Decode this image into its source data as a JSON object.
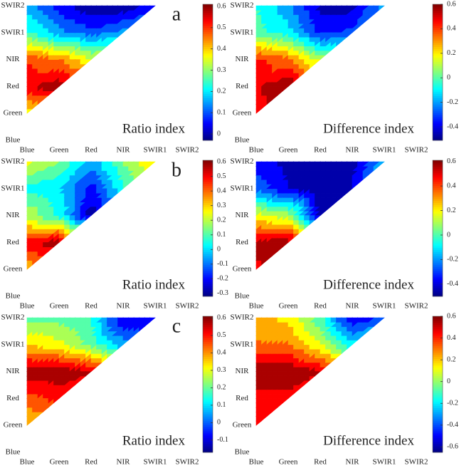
{
  "chart_data": [
    {
      "type": "contour",
      "panel_label": "a",
      "annotation": "Ratio index",
      "x_categories": [
        "Blue",
        "Green",
        "Red",
        "NIR",
        "SWIR1",
        "SWIR2"
      ],
      "y_categories": [
        "Blue",
        "Green",
        "Red",
        "NIR",
        "SWIR1",
        "SWIR2"
      ],
      "values": [
        [
          null,
          null,
          null,
          null,
          null,
          null
        ],
        [
          0.35,
          null,
          null,
          null,
          null,
          null
        ],
        [
          0.55,
          0.6,
          null,
          null,
          null,
          null
        ],
        [
          0.5,
          0.45,
          0.35,
          null,
          null,
          null
        ],
        [
          0.25,
          0.15,
          0.1,
          0.15,
          null,
          null
        ],
        [
          0.15,
          0.05,
          -0.02,
          -0.02,
          0.05,
          null
        ]
      ],
      "colormap": "jet",
      "clim": [
        -0.03,
        0.61
      ],
      "cticks": [
        0,
        0.1,
        0.2,
        0.3,
        0.4,
        0.5,
        0.6
      ]
    },
    {
      "type": "contour",
      "annotation": "Difference index",
      "x_categories": [
        "Blue",
        "Green",
        "Red",
        "NIR",
        "SWIR1",
        "SWIR2"
      ],
      "y_categories": [
        "Blue",
        "Green",
        "Red",
        "NIR",
        "SWIR1",
        "SWIR2"
      ],
      "values": [
        [
          null,
          null,
          null,
          null,
          null,
          null
        ],
        [
          0.45,
          null,
          null,
          null,
          null,
          null
        ],
        [
          0.5,
          0.6,
          null,
          null,
          null,
          null
        ],
        [
          0.45,
          0.35,
          0.1,
          null,
          null,
          null
        ],
        [
          0,
          -0.1,
          -0.35,
          -0.3,
          null,
          null
        ],
        [
          -0.05,
          -0.2,
          -0.45,
          -0.45,
          -0.2,
          null
        ]
      ],
      "colormap": "jet",
      "clim": [
        -0.51,
        0.6
      ],
      "cticks": [
        -0.4,
        -0.2,
        0,
        0.2,
        0.4,
        0.6
      ]
    },
    {
      "type": "contour",
      "panel_label": "b",
      "annotation": "Ratio index",
      "x_categories": [
        "Blue",
        "Green",
        "Red",
        "NIR",
        "SWIR1",
        "SWIR2"
      ],
      "y_categories": [
        "Blue",
        "Green",
        "Red",
        "NIR",
        "SWIR1",
        "SWIR2"
      ],
      "values": [
        [
          null,
          null,
          null,
          null,
          null,
          null
        ],
        [
          0.3,
          null,
          null,
          null,
          null,
          null
        ],
        [
          0.5,
          0.6,
          null,
          null,
          null,
          null
        ],
        [
          0.2,
          0.05,
          -0.3,
          null,
          null,
          null
        ],
        [
          0.05,
          0,
          -0.2,
          0.05,
          null,
          null
        ],
        [
          0.25,
          0.15,
          -0.05,
          0.15,
          0.3,
          null
        ]
      ],
      "colormap": "jet",
      "clim": [
        -0.32,
        0.61
      ],
      "cticks": [
        -0.3,
        -0.2,
        -0.1,
        0,
        0.1,
        0.2,
        0.3,
        0.4,
        0.5,
        0.6
      ]
    },
    {
      "type": "contour",
      "annotation": "Difference index",
      "x_categories": [
        "Blue",
        "Green",
        "Red",
        "NIR",
        "SWIR1",
        "SWIR2"
      ],
      "y_categories": [
        "Blue",
        "Green",
        "Red",
        "NIR",
        "SWIR1",
        "SWIR2"
      ],
      "values": [
        [
          null,
          null,
          null,
          null,
          null,
          null
        ],
        [
          0.5,
          null,
          null,
          null,
          null,
          null
        ],
        [
          0.55,
          0.6,
          null,
          null,
          null,
          null
        ],
        [
          0.2,
          0.1,
          -0.45,
          null,
          null,
          null
        ],
        [
          -0.25,
          -0.4,
          -0.5,
          -0.4,
          null,
          null
        ],
        [
          -0.35,
          -0.45,
          -0.5,
          -0.45,
          -0.15,
          null
        ]
      ],
      "colormap": "jet",
      "clim": [
        -0.5,
        0.61
      ],
      "cticks": [
        -0.4,
        -0.2,
        0,
        0.2,
        0.4,
        0.6
      ]
    },
    {
      "type": "contour",
      "panel_label": "c",
      "annotation": "Ratio index",
      "x_categories": [
        "Blue",
        "Green",
        "Red",
        "NIR",
        "SWIR1",
        "SWIR2"
      ],
      "y_categories": [
        "Blue",
        "Green",
        "Red",
        "NIR",
        "SWIR1",
        "SWIR2"
      ],
      "values": [
        [
          null,
          null,
          null,
          null,
          null,
          null
        ],
        [
          0.35,
          null,
          null,
          null,
          null,
          null
        ],
        [
          0.45,
          0.5,
          null,
          null,
          null,
          null
        ],
        [
          0.6,
          0.6,
          0.55,
          null,
          null,
          null
        ],
        [
          0.35,
          0.3,
          0.2,
          0.05,
          null,
          null
        ],
        [
          0.2,
          0.2,
          0.15,
          -0.1,
          -0.1,
          null
        ]
      ],
      "colormap": "jet",
      "clim": [
        -0.17,
        0.61
      ],
      "cticks": [
        -0.1,
        0,
        0.1,
        0.2,
        0.3,
        0.4,
        0.5,
        0.6
      ]
    },
    {
      "type": "contour",
      "annotation": "Difference index",
      "x_categories": [
        "Blue",
        "Green",
        "Red",
        "NIR",
        "SWIR1",
        "SWIR2"
      ],
      "y_categories": [
        "Blue",
        "Green",
        "Red",
        "NIR",
        "SWIR1",
        "SWIR2"
      ],
      "values": [
        [
          null,
          null,
          null,
          null,
          null,
          null
        ],
        [
          0.4,
          null,
          null,
          null,
          null,
          null
        ],
        [
          0.45,
          0.45,
          null,
          null,
          null,
          null
        ],
        [
          0.6,
          0.6,
          0.5,
          null,
          null,
          null
        ],
        [
          0.3,
          0.3,
          0.1,
          -0.2,
          null,
          null
        ],
        [
          0.25,
          0.15,
          -0.1,
          -0.55,
          -0.4,
          null
        ]
      ],
      "colormap": "jet",
      "clim": [
        -0.65,
        0.6
      ],
      "cticks": [
        -0.6,
        -0.4,
        -0.2,
        0,
        0.2,
        0.4,
        0.6
      ]
    }
  ]
}
